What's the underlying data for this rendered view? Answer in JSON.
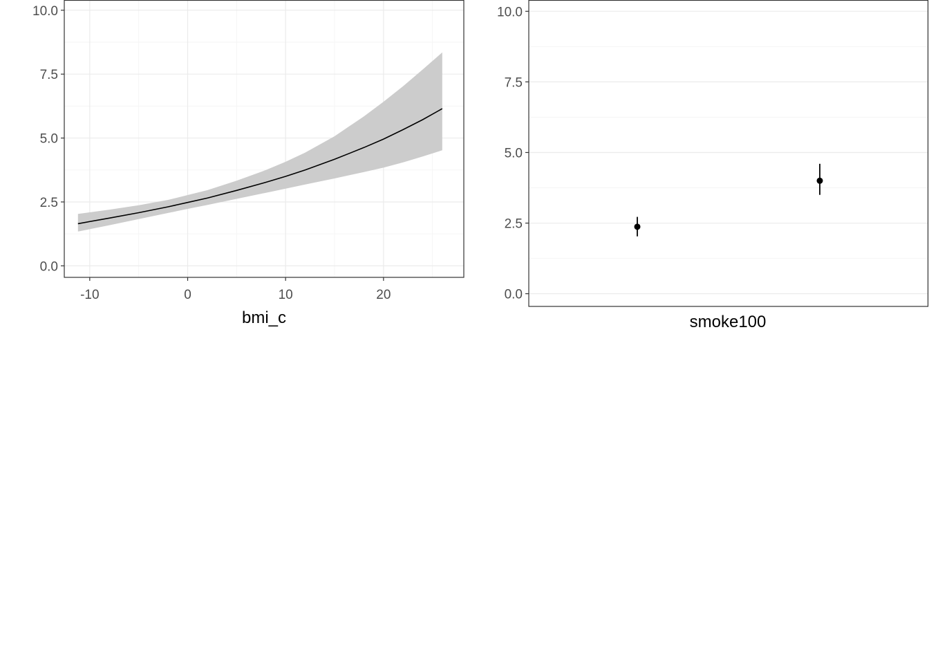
{
  "chart_data": [
    {
      "type": "line",
      "xlabel": "bmi_c",
      "ylabel": "",
      "xlim": [
        -12.6,
        28.2
      ],
      "ylim": [
        -0.45,
        10.4
      ],
      "x_ticks": [
        -10,
        0,
        10,
        20
      ],
      "x_tick_labels": [
        "-10",
        "0",
        "10",
        "20"
      ],
      "y_ticks": [
        0,
        2.5,
        5,
        7.5,
        10
      ],
      "y_tick_labels": [
        "0.0",
        "2.5",
        "5.0",
        "7.5",
        "10.0"
      ],
      "grid": true,
      "series": [
        {
          "x": [
            -11.2,
            -8,
            -5,
            -2,
            0,
            2,
            5,
            8,
            10,
            12,
            15,
            18,
            20,
            22,
            24,
            26
          ],
          "y": [
            1.65,
            1.87,
            2.08,
            2.31,
            2.48,
            2.65,
            2.95,
            3.27,
            3.5,
            3.75,
            4.17,
            4.63,
            4.96,
            5.33,
            5.72,
            6.15
          ],
          "lower": [
            1.34,
            1.59,
            1.83,
            2.07,
            2.23,
            2.38,
            2.62,
            2.86,
            3.02,
            3.18,
            3.42,
            3.67,
            3.84,
            4.05,
            4.28,
            4.52
          ],
          "upper": [
            2.03,
            2.2,
            2.37,
            2.58,
            2.77,
            2.96,
            3.33,
            3.75,
            4.07,
            4.43,
            5.07,
            5.85,
            6.42,
            7.03,
            7.68,
            8.35
          ]
        }
      ],
      "colors": {
        "line": "#000000",
        "band": "#cccccc",
        "grid_major": "#ebebeb",
        "grid_minor": "#f5f5f5"
      }
    },
    {
      "type": "scatter",
      "xlabel": "smoke100",
      "ylabel": "",
      "ylim": [
        -0.45,
        10.4
      ],
      "y_ticks": [
        0,
        2.5,
        5,
        7.5,
        10
      ],
      "y_tick_labels": [
        "0.0",
        "2.5",
        "5.0",
        "7.5",
        "10.0"
      ],
      "grid": true,
      "categories": [
        "",
        ""
      ],
      "series": [
        {
          "values": [
            2.37,
            4.0
          ],
          "lower": [
            2.03,
            3.5
          ],
          "upper": [
            2.72,
            4.6
          ]
        }
      ],
      "colors": {
        "point": "#000000",
        "grid_major": "#ebebeb",
        "grid_minor": "#f5f5f5"
      }
    }
  ]
}
